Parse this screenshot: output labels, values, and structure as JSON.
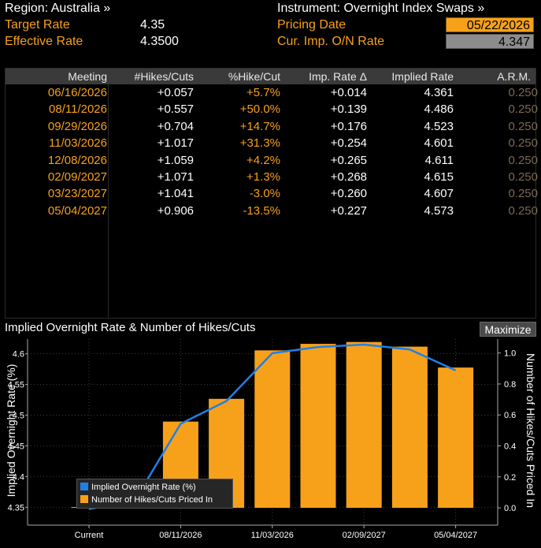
{
  "header": {
    "region_label": "Region: Australia »",
    "target_rate_label": "Target Rate",
    "target_rate_value": "4.35",
    "effective_rate_label": "Effective Rate",
    "effective_rate_value": "4.3500",
    "instrument_label": "Instrument: Overnight Index Swaps »",
    "pricing_date_label": "Pricing Date",
    "pricing_date_value": "05/22/2026",
    "cur_imp_label": "Cur. Imp. O/N Rate",
    "cur_imp_value": "4.347"
  },
  "table": {
    "columns": [
      "Meeting",
      "#Hikes/Cuts",
      "%Hike/Cut",
      "Imp. Rate Δ",
      "Implied Rate",
      "A.R.M."
    ],
    "rows": [
      {
        "meeting": "06/16/2026",
        "hikes": "+0.057",
        "pct": "+5.7%",
        "imp_delta": "+0.014",
        "implied": "4.361",
        "arm": "0.250"
      },
      {
        "meeting": "08/11/2026",
        "hikes": "+0.557",
        "pct": "+50.0%",
        "imp_delta": "+0.139",
        "implied": "4.486",
        "arm": "0.250"
      },
      {
        "meeting": "09/29/2026",
        "hikes": "+0.704",
        "pct": "+14.7%",
        "imp_delta": "+0.176",
        "implied": "4.523",
        "arm": "0.250"
      },
      {
        "meeting": "11/03/2026",
        "hikes": "+1.017",
        "pct": "+31.3%",
        "imp_delta": "+0.254",
        "implied": "4.601",
        "arm": "0.250"
      },
      {
        "meeting": "12/08/2026",
        "hikes": "+1.059",
        "pct": "+4.2%",
        "imp_delta": "+0.265",
        "implied": "4.611",
        "arm": "0.250"
      },
      {
        "meeting": "02/09/2027",
        "hikes": "+1.071",
        "pct": "+1.3%",
        "imp_delta": "+0.268",
        "implied": "4.615",
        "arm": "0.250"
      },
      {
        "meeting": "03/23/2027",
        "hikes": "+1.041",
        "pct": "-3.0%",
        "imp_delta": "+0.260",
        "implied": "4.607",
        "arm": "0.250"
      },
      {
        "meeting": "05/04/2027",
        "hikes": "+0.906",
        "pct": "-13.5%",
        "imp_delta": "+0.227",
        "implied": "4.573",
        "arm": "0.250"
      }
    ]
  },
  "chart_section": {
    "title": "Implied Overnight Rate & Number of Hikes/Cuts",
    "maximize_label": "Maximize"
  },
  "chart_data": {
    "type": "bar",
    "categories": [
      "Current",
      "06/16/2026",
      "08/11/2026",
      "09/29/2026",
      "11/03/2026",
      "12/08/2026",
      "02/09/2027",
      "03/23/2027",
      "05/04/2027"
    ],
    "x_tick_labels": [
      "Current",
      "08/11/2026",
      "11/03/2026",
      "02/09/2027",
      "05/04/2027"
    ],
    "series": [
      {
        "name": "Implied Overnight Rate (%)",
        "type": "line",
        "axis": "left",
        "color": "#1f7fe8",
        "values": [
          4.347,
          4.361,
          4.486,
          4.523,
          4.601,
          4.611,
          4.615,
          4.607,
          4.573
        ]
      },
      {
        "name": "Number of Hikes/Cuts Priced In",
        "type": "bar",
        "axis": "right",
        "color": "#f7a11a",
        "values": [
          0.0,
          0.057,
          0.557,
          0.704,
          1.017,
          1.059,
          1.071,
          1.041,
          0.906
        ]
      }
    ],
    "ylabel": "Implied Overnight Rate (%)",
    "y2label": "Number of Hikes/Cuts Priced In",
    "ylim": [
      4.344,
      4.624
    ],
    "y2lim": [
      -0.02,
      1.09
    ],
    "y_ticks": [
      "4.35",
      "4.4",
      "4.45",
      "4.5",
      "4.55",
      "4.6"
    ],
    "y2_ticks": [
      "0.0",
      "0.2",
      "0.4",
      "0.6",
      "0.8",
      "1.0"
    ],
    "legend_position": "bottom-left",
    "grid": true
  }
}
